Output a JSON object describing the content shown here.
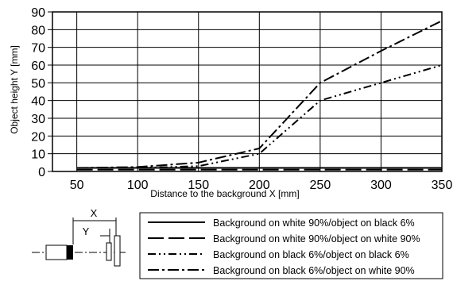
{
  "chart_data": {
    "type": "line",
    "title": "",
    "xlabel": "Distance to the background X [mm]",
    "ylabel": "Object height Y [mm]",
    "xlim": [
      30,
      350
    ],
    "ylim": [
      0,
      90
    ],
    "x_ticks": [
      50,
      100,
      150,
      200,
      250,
      300,
      350
    ],
    "y_ticks": [
      0,
      10,
      20,
      30,
      40,
      50,
      60,
      70,
      80,
      90
    ],
    "grid": true,
    "legend_position": "bottom-right",
    "series": [
      {
        "name": "Background on white 90%/object on black 6%",
        "dash": "solid",
        "x": [
          50,
          100,
          150,
          200,
          250,
          300,
          350
        ],
        "y": [
          2,
          2,
          2,
          2,
          2,
          2,
          2
        ]
      },
      {
        "name": "Background on white 90%/object on white 90%",
        "dash": "long-dash",
        "x": [
          50,
          100,
          150,
          200,
          250,
          300,
          350
        ],
        "y": [
          1,
          1,
          1,
          1,
          1,
          1,
          1
        ]
      },
      {
        "name": "Background on black 6%/object on black 6%",
        "dash": "dash-dot-dot",
        "x": [
          50,
          100,
          150,
          200,
          250,
          300,
          350
        ],
        "y": [
          2,
          2,
          3,
          10,
          40,
          50,
          60
        ]
      },
      {
        "name": "Background on black 6%/object on white 90%",
        "dash": "dash-dot",
        "x": [
          50,
          100,
          150,
          200,
          250,
          300,
          350
        ],
        "y": [
          2,
          2.5,
          5,
          13,
          50,
          68,
          85
        ]
      }
    ]
  },
  "diagram": {
    "x_label": "X",
    "y_label": "Y"
  }
}
